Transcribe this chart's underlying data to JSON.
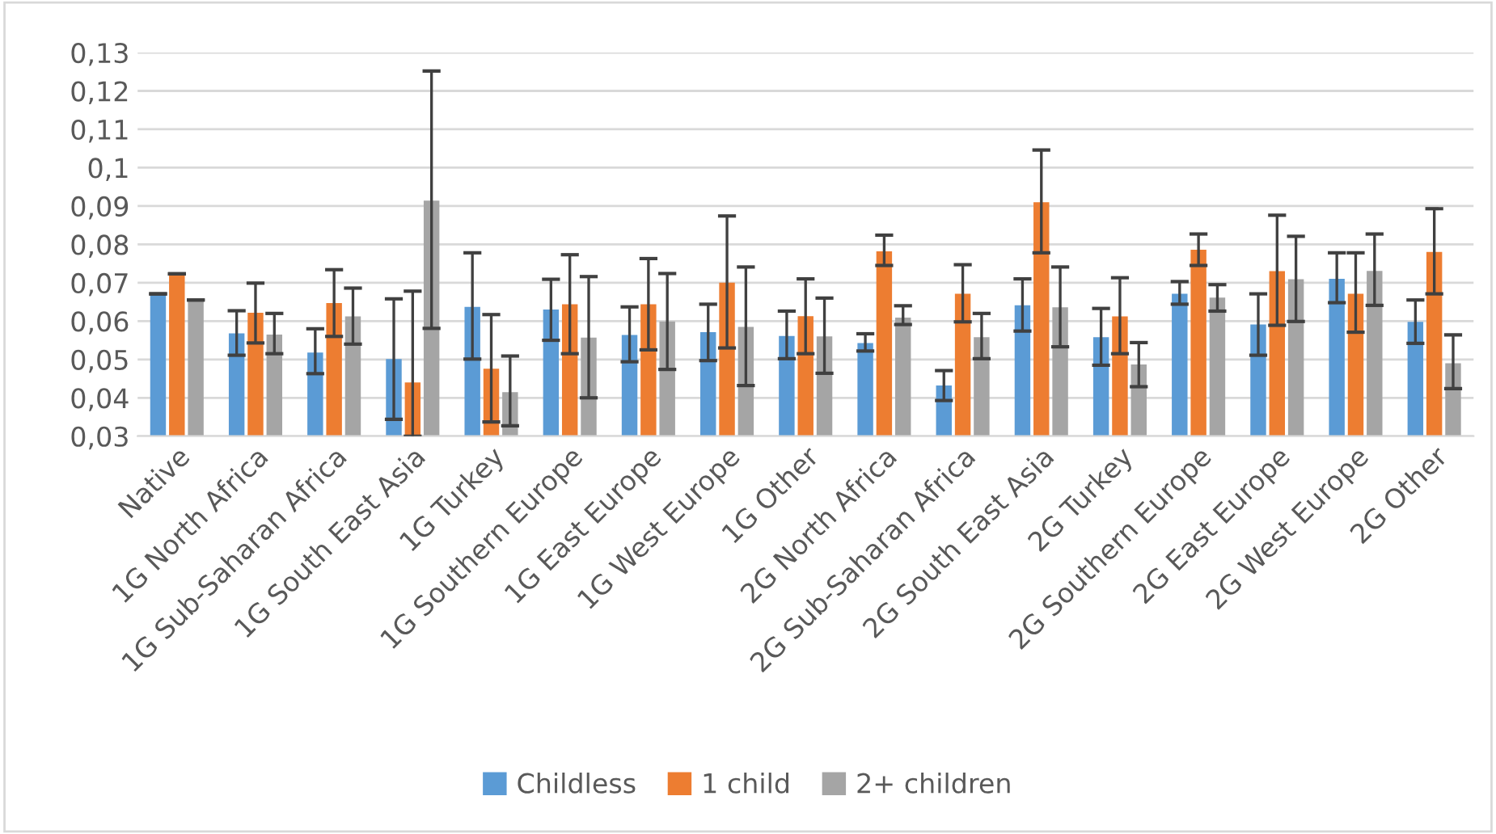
{
  "chart_data": {
    "type": "bar",
    "categories": [
      "Native",
      "1G North Africa",
      "1G Sub-Saharan Africa",
      "1G South East Asia",
      "1G Turkey",
      "1G Southern Europe",
      "1G East Europe",
      "1G West Europe",
      "1G Other",
      "2G North Africa",
      "2G Sub-Saharan Africa",
      "2G South East Asia",
      "2G Turkey",
      "2G Southern Europe",
      "2G East Europe",
      "2G West Europe",
      "2G Other"
    ],
    "series": [
      {
        "name": "Childless",
        "color": "#5b9bd5",
        "values": [
          0.0671,
          0.0568,
          0.0518,
          0.0501,
          0.0637,
          0.063,
          0.0564,
          0.0571,
          0.0561,
          0.0543,
          0.0432,
          0.0641,
          0.0558,
          0.0671,
          0.0591,
          0.071,
          0.0598
        ],
        "errors": [
          [
            0.0671,
            0.0671
          ],
          [
            0.0511,
            0.0627
          ],
          [
            0.0463,
            0.058
          ],
          [
            0.0344,
            0.0658
          ],
          [
            0.0501,
            0.0778
          ],
          [
            0.055,
            0.0709
          ],
          [
            0.0494,
            0.0637
          ],
          [
            0.0497,
            0.0644
          ],
          [
            0.0502,
            0.0626
          ],
          [
            0.0522,
            0.0567
          ],
          [
            0.0393,
            0.0471
          ],
          [
            0.0574,
            0.071
          ],
          [
            0.0485,
            0.0633
          ],
          [
            0.0644,
            0.0703
          ],
          [
            0.0511,
            0.0671
          ],
          [
            0.0648,
            0.0778
          ],
          [
            0.0542,
            0.0655
          ]
        ]
      },
      {
        "name": "1 child",
        "color": "#ed7d31",
        "values": [
          0.0723,
          0.0622,
          0.0647,
          0.044,
          0.0476,
          0.0644,
          0.0644,
          0.07,
          0.0613,
          0.0782,
          0.0671,
          0.091,
          0.0612,
          0.0786,
          0.073,
          0.0671,
          0.078
        ],
        "errors": [
          [
            0.0723,
            0.0723
          ],
          [
            0.0543,
            0.0699
          ],
          [
            0.056,
            0.0734
          ],
          [
            0.03,
            0.0678
          ],
          [
            0.0337,
            0.0617
          ],
          [
            0.0515,
            0.0773
          ],
          [
            0.0525,
            0.0763
          ],
          [
            0.053,
            0.0874
          ],
          [
            0.0515,
            0.071
          ],
          [
            0.0745,
            0.0824
          ],
          [
            0.0598,
            0.0747
          ],
          [
            0.0778,
            0.1046
          ],
          [
            0.0515,
            0.0713
          ],
          [
            0.0745,
            0.0827
          ],
          [
            0.0589,
            0.0876
          ],
          [
            0.0571,
            0.0778
          ],
          [
            0.0671,
            0.0893
          ]
        ]
      },
      {
        "name": "2+ children",
        "color": "#a5a5a5",
        "values": [
          0.0655,
          0.0565,
          0.0612,
          0.0914,
          0.0415,
          0.0557,
          0.0599,
          0.0585,
          0.056,
          0.0609,
          0.0558,
          0.0636,
          0.0487,
          0.0661,
          0.0709,
          0.0731,
          0.049
        ],
        "errors": [
          [
            0.0655,
            0.0655
          ],
          [
            0.0515,
            0.062
          ],
          [
            0.054,
            0.0686
          ],
          [
            0.0581,
            0.1252
          ],
          [
            0.0327,
            0.0509
          ],
          [
            0.04,
            0.0716
          ],
          [
            0.0474,
            0.0724
          ],
          [
            0.0432,
            0.0741
          ],
          [
            0.0464,
            0.066
          ],
          [
            0.0591,
            0.064
          ],
          [
            0.0502,
            0.062
          ],
          [
            0.0533,
            0.0741
          ],
          [
            0.0429,
            0.0544
          ],
          [
            0.0626,
            0.0695
          ],
          [
            0.0599,
            0.0821
          ],
          [
            0.0641,
            0.0827
          ],
          [
            0.0424,
            0.0564
          ]
        ]
      }
    ],
    "ylim": [
      0.03,
      0.13
    ],
    "yticks": [
      {
        "value": 0.03,
        "label": "0,03"
      },
      {
        "value": 0.04,
        "label": "0,04"
      },
      {
        "value": 0.05,
        "label": "0,05"
      },
      {
        "value": 0.06,
        "label": "0,06"
      },
      {
        "value": 0.07,
        "label": "0,07"
      },
      {
        "value": 0.08,
        "label": "0,08"
      },
      {
        "value": 0.09,
        "label": "0,09"
      },
      {
        "value": 0.1,
        "label": "0,1"
      },
      {
        "value": 0.11,
        "label": "0,11"
      },
      {
        "value": 0.12,
        "label": "0,12"
      },
      {
        "value": 0.13,
        "label": "0,13"
      }
    ],
    "grid": "y",
    "legend": "bottom"
  }
}
